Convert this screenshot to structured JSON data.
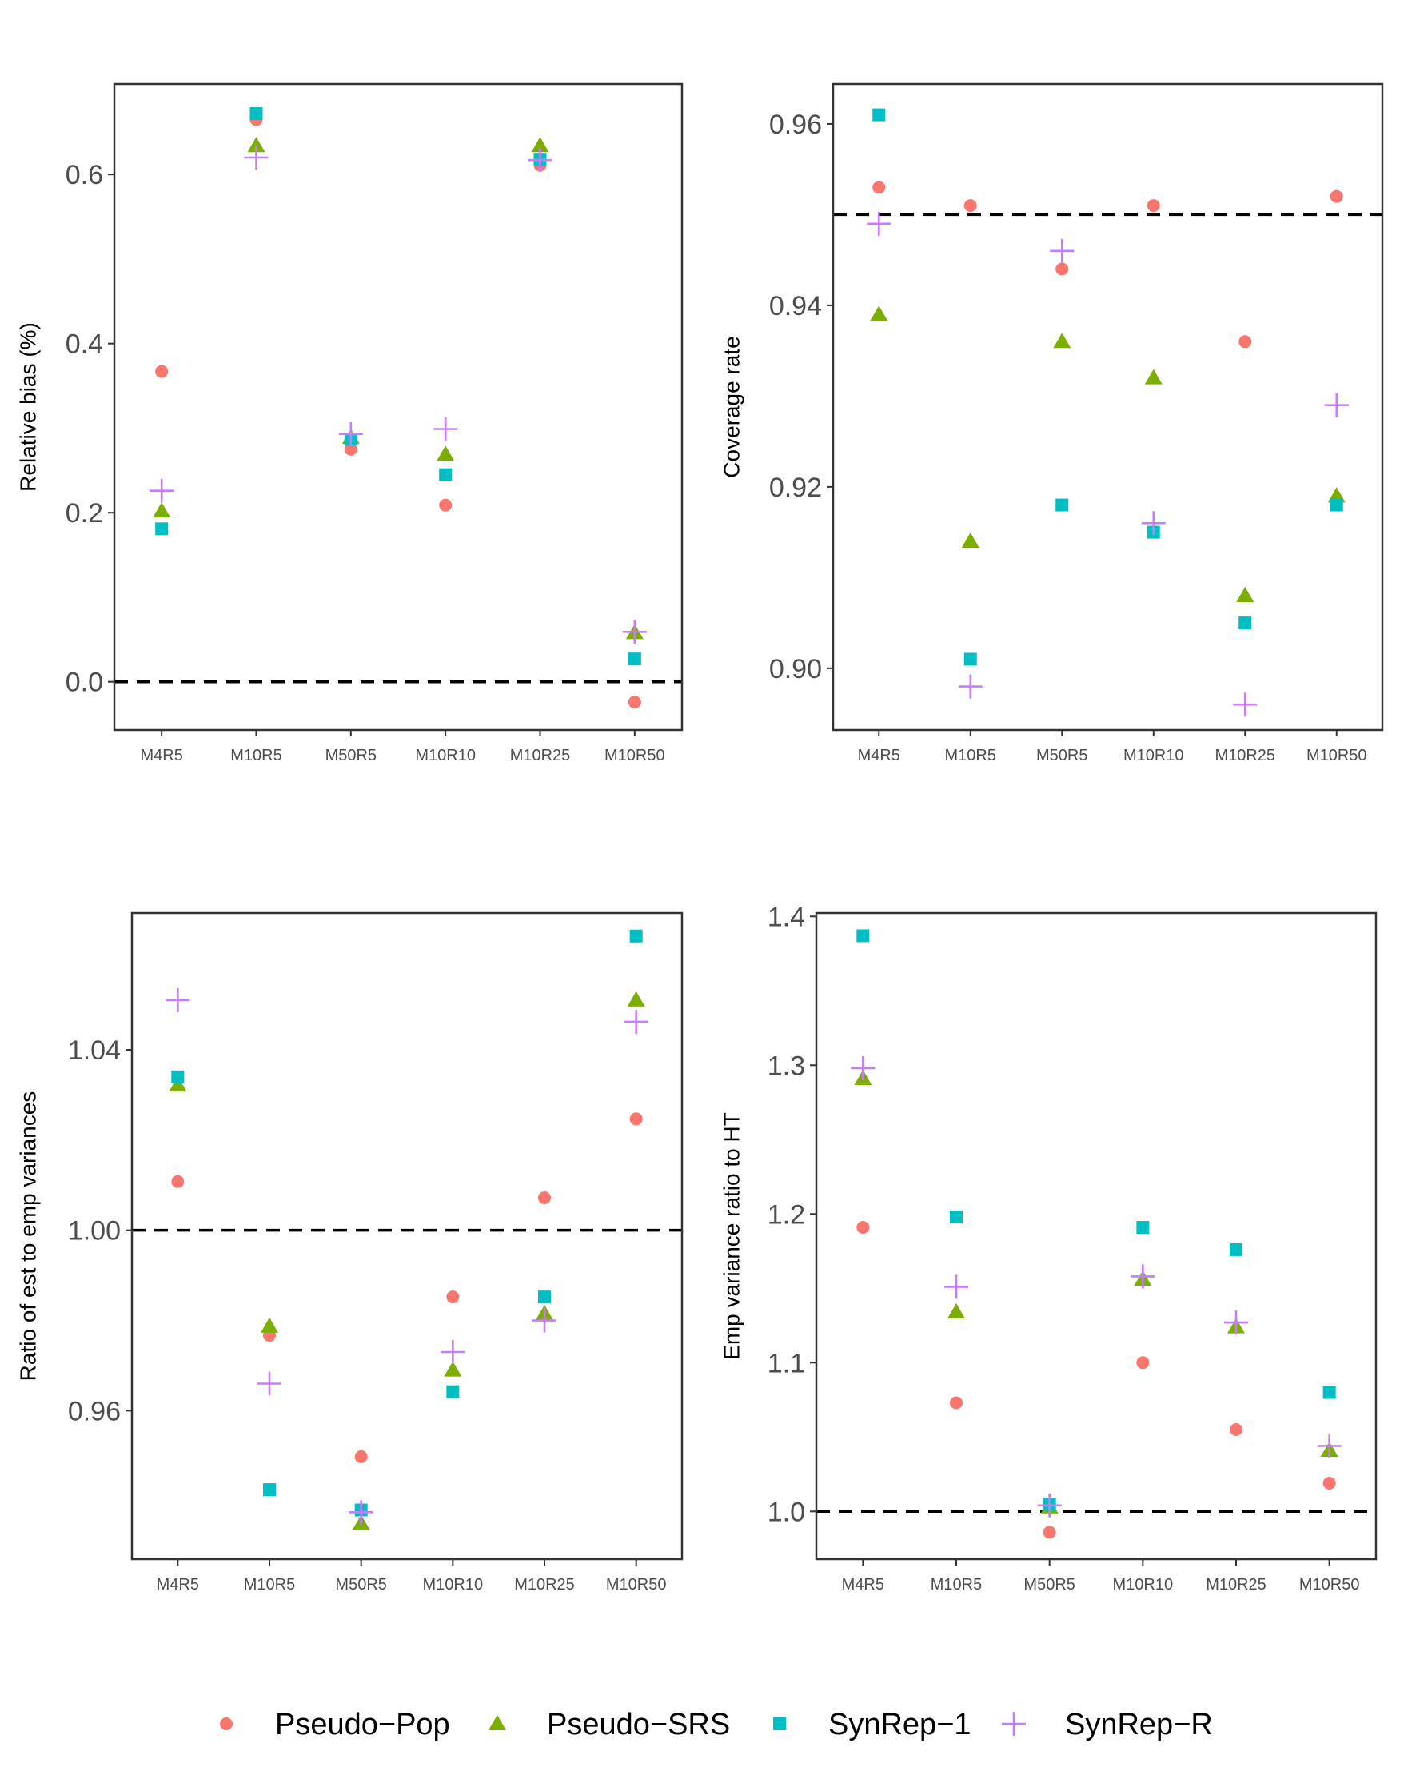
{
  "legend": [
    {
      "key": "pseudo_pop",
      "label": "Pseudo−Pop",
      "shape": "circle",
      "color": "#F8766D"
    },
    {
      "key": "pseudo_srs",
      "label": "Pseudo−SRS",
      "shape": "triangle",
      "color": "#7CAE00"
    },
    {
      "key": "synrep_1",
      "label": "SynRep−1",
      "shape": "square",
      "color": "#00BFC4"
    },
    {
      "key": "synrep_r",
      "label": "SynRep−R",
      "shape": "plus",
      "color": "#C77CFF"
    }
  ],
  "chart_data": [
    {
      "type": "scatter",
      "ylabel": "Relative bias (%)",
      "categories": [
        "M4R5",
        "M10R5",
        "M50R5",
        "M10R10",
        "M10R25",
        "M10R50"
      ],
      "yticks": [
        0.0,
        0.2,
        0.4,
        0.6
      ],
      "ytick_labels": [
        "0.0",
        "0.2",
        "0.4",
        "0.6"
      ],
      "ylim": [
        -0.057,
        0.707
      ],
      "reference_line": 0.0,
      "series": [
        {
          "name": "Pseudo−Pop",
          "values": [
            0.367,
            0.665,
            0.275,
            0.209,
            0.611,
            -0.024
          ]
        },
        {
          "name": "Pseudo−SRS",
          "values": [
            0.202,
            0.634,
            0.289,
            0.269,
            0.634,
            0.058
          ]
        },
        {
          "name": "SynRep−1",
          "values": [
            0.181,
            0.672,
            0.287,
            0.245,
            0.618,
            0.027
          ]
        },
        {
          "name": "SynRep−R",
          "values": [
            0.226,
            0.62,
            0.293,
            0.299,
            0.617,
            0.059
          ]
        }
      ]
    },
    {
      "type": "scatter",
      "ylabel": "Coverage rate",
      "categories": [
        "M4R5",
        "M10R5",
        "M50R5",
        "M10R10",
        "M10R25",
        "M10R50"
      ],
      "yticks": [
        0.9,
        0.92,
        0.94,
        0.96
      ],
      "ytick_labels": [
        "0.90",
        "0.92",
        "0.94",
        "0.96"
      ],
      "ylim": [
        0.8932,
        0.9644
      ],
      "reference_line": 0.95,
      "series": [
        {
          "name": "Pseudo−Pop",
          "values": [
            0.953,
            0.951,
            0.944,
            0.951,
            0.936,
            0.952
          ]
        },
        {
          "name": "Pseudo−SRS",
          "values": [
            0.939,
            0.914,
            0.936,
            0.932,
            0.908,
            0.919
          ]
        },
        {
          "name": "SynRep−1",
          "values": [
            0.961,
            0.901,
            0.918,
            0.915,
            0.905,
            0.918
          ]
        },
        {
          "name": "SynRep−R",
          "values": [
            0.949,
            0.898,
            0.946,
            0.916,
            0.896,
            0.929
          ]
        }
      ]
    },
    {
      "type": "scatter",
      "ylabel": "Ratio of est to emp variances",
      "categories": [
        "M4R5",
        "M10R5",
        "M50R5",
        "M10R10",
        "M10R25",
        "M10R50"
      ],
      "yticks": [
        0.96,
        1.0,
        1.04
      ],
      "ytick_labels": [
        "0.96",
        "1.00",
        "1.04"
      ],
      "ylim": [
        0.9271,
        1.0703
      ],
      "reference_line": 1.0,
      "series": [
        {
          "name": "Pseudo−Pop",
          "values": [
            1.0108,
            0.9767,
            0.9498,
            0.9852,
            1.0072,
            1.0247
          ]
        },
        {
          "name": "Pseudo−SRS",
          "values": [
            1.0322,
            0.9787,
            0.935,
            0.969,
            0.9815,
            1.051
          ]
        },
        {
          "name": "SynRep−1",
          "values": [
            1.034,
            0.9425,
            0.938,
            0.9642,
            0.9852,
            1.0652
          ]
        },
        {
          "name": "SynRep−R",
          "values": [
            1.051,
            0.966,
            0.9375,
            0.973,
            0.98,
            1.0462
          ]
        }
      ]
    },
    {
      "type": "scatter",
      "ylabel": "Emp variance ratio to HT",
      "categories": [
        "M4R5",
        "M10R5",
        "M50R5",
        "M10R10",
        "M10R25",
        "M10R50"
      ],
      "yticks": [
        1.0,
        1.1,
        1.2,
        1.3,
        1.4
      ],
      "ytick_labels": [
        "1.0",
        "1.1",
        "1.2",
        "1.3",
        "1.4"
      ],
      "ylim": [
        0.9679,
        1.4023
      ],
      "reference_line": 1.0,
      "series": [
        {
          "name": "Pseudo−Pop",
          "values": [
            1.191,
            1.073,
            0.986,
            1.1,
            1.055,
            1.019
          ]
        },
        {
          "name": "Pseudo−SRS",
          "values": [
            1.291,
            1.134,
            1.003,
            1.156,
            1.124,
            1.041
          ]
        },
        {
          "name": "SynRep−1",
          "values": [
            1.387,
            1.198,
            1.005,
            1.191,
            1.176,
            1.08
          ]
        },
        {
          "name": "SynRep−R",
          "values": [
            1.298,
            1.151,
            1.004,
            1.158,
            1.127,
            1.044
          ]
        }
      ]
    }
  ]
}
